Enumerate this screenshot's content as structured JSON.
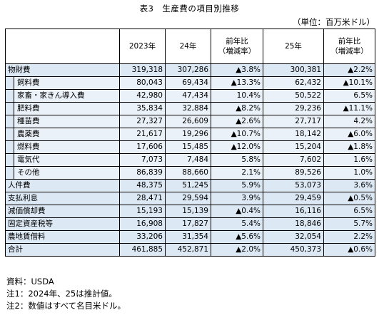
{
  "title": "表3　生産費の項目別推移",
  "unit": "（単位：百万米ドル）",
  "header": {
    "col_2023": "2023年",
    "col_24": "24年",
    "col_yoy1_line1": "前年比",
    "col_yoy1_line2": "（増減率）",
    "col_25": "25年",
    "col_yoy2_line1": "前年比",
    "col_yoy2_line2": "（増減率）"
  },
  "rows": [
    {
      "name": "物財費",
      "v2023": "319,318",
      "v24": "307,286",
      "yoy24": "▲3.8%",
      "v25": "300,381",
      "yoy25": "▲2.2%"
    },
    {
      "name": "飼料費",
      "v2023": "80,043",
      "v24": "69,434",
      "yoy24": "▲13.3%",
      "v25": "62,432",
      "yoy25": "▲10.1%"
    },
    {
      "name": "家畜・家きん導入費",
      "v2023": "42,980",
      "v24": "47,434",
      "yoy24": "10.4%",
      "v25": "50,522",
      "yoy25": "6.5%"
    },
    {
      "name": "肥料費",
      "v2023": "35,834",
      "v24": "32,884",
      "yoy24": "▲8.2%",
      "v25": "29,236",
      "yoy25": "▲11.1%"
    },
    {
      "name": "種苗費",
      "v2023": "27,327",
      "v24": "26,609",
      "yoy24": "▲2.6%",
      "v25": "27,717",
      "yoy25": "4.2%"
    },
    {
      "name": "農薬費",
      "v2023": "21,617",
      "v24": "19,296",
      "yoy24": "▲10.7%",
      "v25": "18,142",
      "yoy25": "▲6.0%"
    },
    {
      "name": "燃料費",
      "v2023": "17,606",
      "v24": "15,485",
      "yoy24": "▲12.0%",
      "v25": "15,204",
      "yoy25": "▲1.8%"
    },
    {
      "name": "電気代",
      "v2023": "7,073",
      "v24": "7,484",
      "yoy24": "5.8%",
      "v25": "7,602",
      "yoy25": "1.6%"
    },
    {
      "name": "その他",
      "v2023": "86,839",
      "v24": "88,660",
      "yoy24": "2.1%",
      "v25": "89,526",
      "yoy25": "1.0%"
    },
    {
      "name": "人件費",
      "v2023": "48,375",
      "v24": "51,245",
      "yoy24": "5.9%",
      "v25": "53,073",
      "yoy25": "3.6%"
    },
    {
      "name": "支払利息",
      "v2023": "28,471",
      "v24": "29,594",
      "yoy24": "3.9%",
      "v25": "29,459",
      "yoy25": "▲0.5%"
    },
    {
      "name": "減価償却費",
      "v2023": "15,193",
      "v24": "15,139",
      "yoy24": "▲0.4%",
      "v25": "16,116",
      "yoy25": "6.5%"
    },
    {
      "name": "固定資産税等",
      "v2023": "16,908",
      "v24": "17,827",
      "yoy24": "5.4%",
      "v25": "18,846",
      "yoy25": "5.7%"
    },
    {
      "name": "農地賃借料",
      "v2023": "33,206",
      "v24": "31,354",
      "yoy24": "▲5.6%",
      "v25": "32,054",
      "yoy25": "2.2%"
    },
    {
      "name": "合計",
      "v2023": "461,885",
      "v24": "452,871",
      "yoy24": "▲2.0%",
      "v25": "450,373",
      "yoy25": "▲0.6%"
    }
  ],
  "footnotes": {
    "source": "資料：USDA",
    "note1": "注1：2024年、25は推計値。",
    "note2": "注2：数値はすべて名目米ドル。"
  },
  "colors": {
    "band": "#dce8f4",
    "band_light": "#eaf1f8",
    "border": "#000000"
  }
}
